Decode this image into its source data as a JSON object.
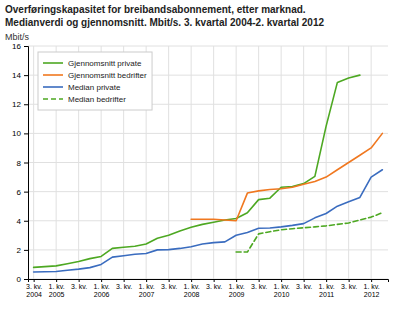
{
  "chart_data": {
    "type": "line",
    "title": "Overføringskapasitet for breibandsabonnement, etter marknad.",
    "subtitle": "Medianverdi og gjennomsnitt. Mbit/s. 3. kvartal 2004-2. kvartal 2012",
    "ylabel": "Mbit/s",
    "categories": [
      "3. kv.\n2004",
      null,
      "1. kv.\n2005",
      null,
      "3. kv.",
      null,
      "1. kv.\n2006",
      null,
      "3. kv.",
      null,
      "1. kv.\n2007",
      null,
      "3. kv.",
      null,
      "1. kv.\n2008",
      null,
      "3. kv.",
      null,
      "1. kv.\n2009",
      null,
      "3. kv.",
      null,
      "1. kv.\n2010",
      null,
      "3. kv.",
      null,
      "1. kv.\n2011",
      null,
      "3. kv.",
      null,
      "1. kv.\n2012",
      null
    ],
    "series": [
      {
        "name": "Gjennomsnitt private",
        "color": "#4da822",
        "line_style": "solid",
        "values": [
          0.8,
          0.85,
          0.9,
          1.05,
          1.2,
          1.4,
          1.55,
          2.1,
          2.18,
          2.25,
          2.4,
          2.8,
          3.0,
          3.3,
          3.55,
          3.75,
          3.9,
          4.05,
          4.15,
          4.55,
          5.45,
          5.55,
          6.3,
          6.35,
          6.55,
          7.05,
          10.5,
          13.5,
          13.8,
          14.0,
          null,
          null
        ]
      },
      {
        "name": "Gjennomsnitt bedrifter",
        "color": "#f07820",
        "line_style": "solid",
        "values": [
          null,
          null,
          null,
          null,
          null,
          null,
          null,
          null,
          null,
          null,
          null,
          null,
          null,
          null,
          4.1,
          4.1,
          4.1,
          4.05,
          4.0,
          5.9,
          6.05,
          6.15,
          6.2,
          6.3,
          6.5,
          6.7,
          7.0,
          7.5,
          8.0,
          8.5,
          9.0,
          10.0
        ]
      },
      {
        "name": "Median private",
        "color": "#3a6cbf",
        "line_style": "solid",
        "values": [
          0.48,
          0.5,
          0.52,
          0.6,
          0.68,
          0.78,
          1.0,
          1.5,
          1.6,
          1.7,
          1.75,
          2.0,
          2.02,
          2.1,
          2.22,
          2.4,
          2.5,
          2.55,
          3.0,
          3.2,
          3.48,
          3.5,
          3.58,
          3.68,
          3.8,
          4.2,
          4.5,
          5.0,
          5.3,
          5.6,
          7.0,
          7.5
        ]
      },
      {
        "name": "Median bedrifter",
        "color": "#4da822",
        "line_style": "dashed",
        "values": [
          null,
          null,
          null,
          null,
          null,
          null,
          null,
          null,
          null,
          null,
          null,
          null,
          null,
          null,
          null,
          null,
          null,
          null,
          1.85,
          1.85,
          3.1,
          3.25,
          3.38,
          3.45,
          3.52,
          3.58,
          3.65,
          3.75,
          3.85,
          4.05,
          4.25,
          4.55
        ]
      }
    ],
    "ylim": [
      0,
      16
    ],
    "yticks": [
      0,
      2,
      4,
      6,
      8,
      10,
      12,
      14,
      16
    ],
    "grid": true,
    "legend": "upper left"
  }
}
